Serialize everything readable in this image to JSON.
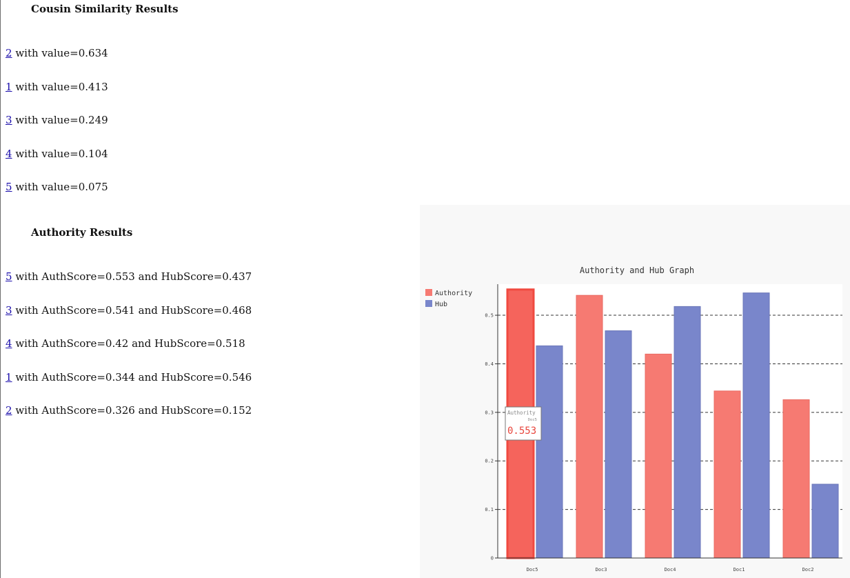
{
  "cousin": {
    "title": "Cousin Similarity Results",
    "items": [
      {
        "doc": "2",
        "text": " with value=0.634"
      },
      {
        "doc": "1",
        "text": " with value=0.413"
      },
      {
        "doc": "3",
        "text": " with value=0.249"
      },
      {
        "doc": "4",
        "text": " with value=0.104"
      },
      {
        "doc": "5",
        "text": " with value=0.075"
      }
    ]
  },
  "authority": {
    "title": "Authority Results",
    "items": [
      {
        "doc": "5",
        "text": " with AuthScore=0.553 and HubScore=0.437"
      },
      {
        "doc": "3",
        "text": " with AuthScore=0.541 and HubScore=0.468"
      },
      {
        "doc": "4",
        "text": " with AuthScore=0.42 and HubScore=0.518"
      },
      {
        "doc": "1",
        "text": " with AuthScore=0.344 and HubScore=0.546"
      },
      {
        "doc": "2",
        "text": " with AuthScore=0.326 and HubScore=0.152"
      }
    ]
  },
  "colors": {
    "authority": "#f67a72",
    "authority_highlight": "#f5645c",
    "hub": "#7986cb",
    "panel": "#f8f8f8"
  },
  "chart_data": {
    "type": "bar",
    "title": "Authority and Hub Graph",
    "categories": [
      "Doc5",
      "Doc3",
      "Doc4",
      "Doc1",
      "Doc2"
    ],
    "series": [
      {
        "name": "Authority",
        "values": [
          0.553,
          0.541,
          0.42,
          0.344,
          0.326
        ]
      },
      {
        "name": "Hub",
        "values": [
          0.437,
          0.468,
          0.518,
          0.546,
          0.152
        ]
      }
    ],
    "yticks": [
      0,
      0.1,
      0.2,
      0.3,
      0.4,
      0.5
    ],
    "ytick_labels": [
      "0",
      "0.1",
      "0.2",
      "0.3",
      "0.4",
      "0.5"
    ],
    "ylim": [
      0,
      0.564
    ],
    "grid": true,
    "legend": "top-left",
    "tooltip": {
      "series": "Authority",
      "category": "Doc5",
      "value": "0.553"
    }
  }
}
